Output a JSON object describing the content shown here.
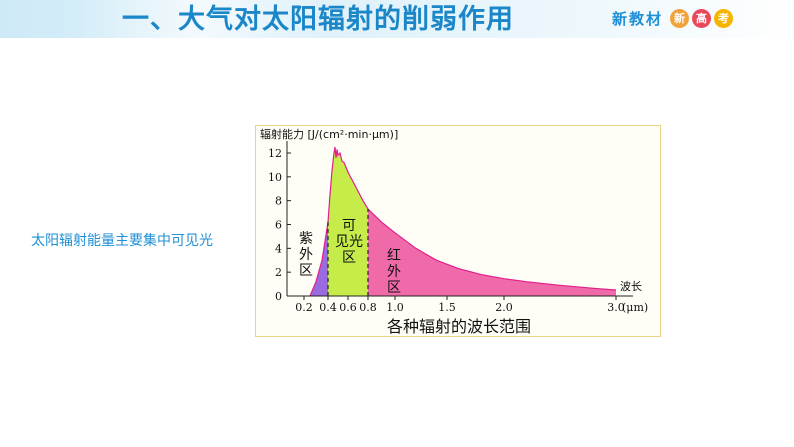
{
  "header": {
    "title": "一、大气对太阳辐射的削弱作用",
    "brand": "新教材",
    "badges": [
      {
        "char": "新",
        "color": "#f2a23a"
      },
      {
        "char": "高",
        "color": "#e9485a"
      },
      {
        "char": "考",
        "color": "#f5b400"
      }
    ]
  },
  "side_note": "太阳辐射能量主要集中可见光",
  "chart_data": {
    "type": "area",
    "title": "各种辐射的波长范围",
    "ylabel": "辐射能力 [J/(cm²·min·μm)]",
    "xlabel": "波长",
    "x_unit": "(μm)",
    "ylim": [
      0,
      12
    ],
    "yticks": [
      0,
      2,
      4,
      6,
      8,
      10,
      12
    ],
    "xtick_labels": [
      {
        "x": 0.2,
        "label": "0.2"
      },
      {
        "x": 0.4,
        "label": "0.4"
      },
      {
        "x": 0.6,
        "label": "0.6"
      },
      {
        "x": 0.8,
        "label": "0.8"
      },
      {
        "x": 1.0,
        "label": "1.0"
      },
      {
        "x": 1.5,
        "label": "1.5"
      },
      {
        "x": 2.0,
        "label": "2.0"
      },
      {
        "x": 3.0,
        "label": "3.0"
      }
    ],
    "curve": [
      [
        0.25,
        0.0
      ],
      [
        0.3,
        1.2
      ],
      [
        0.35,
        3.0
      ],
      [
        0.4,
        6.2
      ],
      [
        0.42,
        8.5
      ],
      [
        0.44,
        10.5
      ],
      [
        0.46,
        12.0
      ],
      [
        0.47,
        12.5
      ],
      [
        0.48,
        11.6
      ],
      [
        0.49,
        12.3
      ],
      [
        0.5,
        11.8
      ],
      [
        0.52,
        12.0
      ],
      [
        0.54,
        11.3
      ],
      [
        0.56,
        11.2
      ],
      [
        0.6,
        10.4
      ],
      [
        0.65,
        9.6
      ],
      [
        0.7,
        8.8
      ],
      [
        0.75,
        8.0
      ],
      [
        0.8,
        7.3
      ],
      [
        0.9,
        6.2
      ],
      [
        1.0,
        5.3
      ],
      [
        1.2,
        4.0
      ],
      [
        1.4,
        3.0
      ],
      [
        1.6,
        2.3
      ],
      [
        1.8,
        1.8
      ],
      [
        2.0,
        1.45
      ],
      [
        2.2,
        1.2
      ],
      [
        2.5,
        0.9
      ],
      [
        2.8,
        0.65
      ],
      [
        3.0,
        0.5
      ]
    ],
    "regions": [
      {
        "name": "紫外区",
        "from": 0.25,
        "to": 0.4,
        "color": "#9a6be0"
      },
      {
        "name": "可见光区",
        "from": 0.4,
        "to": 0.8,
        "color": "#c6ec4a"
      },
      {
        "name": "红外区",
        "from": 0.8,
        "to": 3.0,
        "color": "#f06aaa"
      }
    ],
    "boundaries": [
      0.4,
      0.8
    ],
    "curve_color": "#e0208a",
    "legend": "none",
    "grid": false
  }
}
